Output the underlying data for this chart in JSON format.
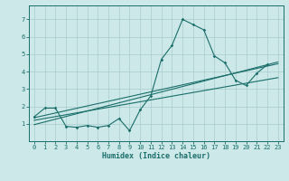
{
  "title": "",
  "xlabel": "Humidex (Indice chaleur)",
  "ylabel": "",
  "xlim": [
    -0.5,
    23.5
  ],
  "ylim": [
    0,
    7.8
  ],
  "xticks": [
    0,
    1,
    2,
    3,
    4,
    5,
    6,
    7,
    8,
    9,
    10,
    11,
    12,
    13,
    14,
    15,
    16,
    17,
    18,
    19,
    20,
    21,
    22,
    23
  ],
  "yticks": [
    1,
    2,
    3,
    4,
    5,
    6,
    7
  ],
  "bg_color": "#cce8e8",
  "grid_color": "#a8cccc",
  "line_color": "#1a6e6a",
  "tick_fontsize": 5.0,
  "xlabel_fontsize": 6.0,
  "series": [
    {
      "x": [
        0,
        1,
        2,
        3,
        4,
        5,
        6,
        7,
        8,
        9,
        10,
        11,
        12,
        13,
        14,
        15,
        16,
        17,
        18,
        19,
        20,
        21,
        22
      ],
      "y": [
        1.4,
        1.9,
        1.9,
        0.85,
        0.8,
        0.9,
        0.8,
        0.9,
        1.3,
        0.6,
        1.8,
        2.6,
        4.7,
        5.5,
        7.0,
        6.7,
        6.4,
        4.9,
        4.5,
        3.5,
        3.2,
        3.9,
        4.4
      ]
    },
    {
      "x": [
        0,
        23
      ],
      "y": [
        1.35,
        4.45
      ]
    },
    {
      "x": [
        0,
        23
      ],
      "y": [
        1.2,
        3.65
      ]
    },
    {
      "x": [
        0,
        23
      ],
      "y": [
        0.95,
        4.55
      ]
    }
  ]
}
